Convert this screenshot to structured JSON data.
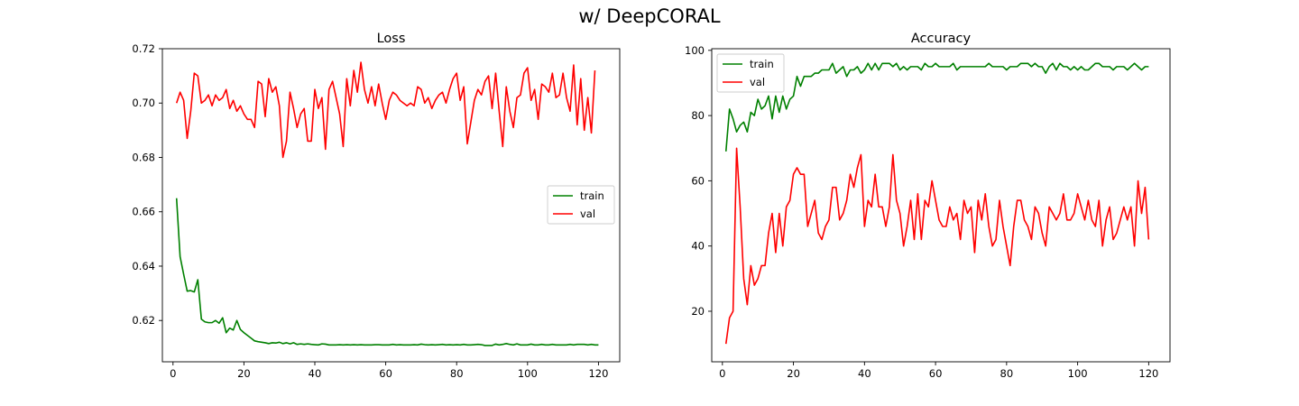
{
  "figure": {
    "title": "w/ DeepCORAL"
  },
  "chart_data": [
    {
      "type": "line",
      "title": "Loss",
      "xlabel": "",
      "ylabel": "",
      "xlim": [
        -3,
        126
      ],
      "ylim": [
        0.6048,
        0.72
      ],
      "xticks": [
        0,
        20,
        40,
        60,
        80,
        100,
        120
      ],
      "yticks": [
        0.62,
        0.64,
        0.66,
        0.68,
        0.7,
        0.72
      ],
      "ytick_labels": [
        "0.62",
        "0.64",
        "0.66",
        "0.68",
        "0.70",
        "0.72"
      ],
      "legend": {
        "position": "center-right",
        "entries": [
          "train",
          "val"
        ]
      },
      "grid": false,
      "x_start": 1,
      "series": [
        {
          "name": "train",
          "color": "#008000",
          "values": [
            0.665,
            0.6435,
            0.637,
            0.6308,
            0.631,
            0.6305,
            0.635,
            0.6205,
            0.6195,
            0.6192,
            0.6192,
            0.62,
            0.619,
            0.621,
            0.6155,
            0.6172,
            0.6165,
            0.62,
            0.6167,
            0.6155,
            0.6145,
            0.6135,
            0.6125,
            0.6122,
            0.612,
            0.6118,
            0.6115,
            0.6118,
            0.6117,
            0.612,
            0.6115,
            0.6118,
            0.6114,
            0.6118,
            0.6112,
            0.6114,
            0.6112,
            0.6114,
            0.6112,
            0.6111,
            0.611,
            0.6114,
            0.6113,
            0.611,
            0.611,
            0.611,
            0.6111,
            0.611,
            0.6111,
            0.611,
            0.6111,
            0.611,
            0.6111,
            0.611,
            0.611,
            0.611,
            0.6111,
            0.6111,
            0.611,
            0.611,
            0.611,
            0.6112,
            0.611,
            0.6111,
            0.611,
            0.611,
            0.611,
            0.6111,
            0.611,
            0.6113,
            0.6111,
            0.611,
            0.6111,
            0.611,
            0.6111,
            0.6112,
            0.611,
            0.6111,
            0.611,
            0.6111,
            0.611,
            0.6112,
            0.611,
            0.611,
            0.6111,
            0.6112,
            0.6111,
            0.6108,
            0.6108,
            0.6108,
            0.6113,
            0.611,
            0.6112,
            0.6115,
            0.6112,
            0.611,
            0.6114,
            0.611,
            0.611,
            0.611,
            0.6113,
            0.611,
            0.611,
            0.6112,
            0.611,
            0.611,
            0.6112,
            0.611,
            0.611,
            0.611,
            0.611,
            0.6112,
            0.611,
            0.6112,
            0.6112,
            0.6112,
            0.611,
            0.6112,
            0.611,
            0.611
          ]
        },
        {
          "name": "val",
          "color": "#ff0000",
          "values": [
            0.7,
            0.704,
            0.701,
            0.687,
            0.697,
            0.711,
            0.71,
            0.7,
            0.701,
            0.703,
            0.699,
            0.703,
            0.701,
            0.702,
            0.705,
            0.698,
            0.701,
            0.697,
            0.699,
            0.696,
            0.694,
            0.694,
            0.691,
            0.708,
            0.707,
            0.695,
            0.709,
            0.704,
            0.706,
            0.699,
            0.68,
            0.686,
            0.704,
            0.698,
            0.691,
            0.696,
            0.698,
            0.686,
            0.686,
            0.705,
            0.698,
            0.702,
            0.683,
            0.705,
            0.708,
            0.702,
            0.696,
            0.684,
            0.709,
            0.699,
            0.712,
            0.704,
            0.715,
            0.705,
            0.7,
            0.706,
            0.699,
            0.707,
            0.7,
            0.694,
            0.701,
            0.704,
            0.703,
            0.701,
            0.7,
            0.699,
            0.7,
            0.699,
            0.706,
            0.705,
            0.7,
            0.702,
            0.698,
            0.701,
            0.703,
            0.704,
            0.7,
            0.705,
            0.709,
            0.711,
            0.701,
            0.706,
            0.685,
            0.693,
            0.701,
            0.705,
            0.703,
            0.708,
            0.71,
            0.698,
            0.711,
            0.697,
            0.684,
            0.706,
            0.697,
            0.691,
            0.702,
            0.703,
            0.711,
            0.713,
            0.701,
            0.705,
            0.694,
            0.707,
            0.706,
            0.704,
            0.711,
            0.702,
            0.703,
            0.711,
            0.702,
            0.697,
            0.714,
            0.692,
            0.709,
            0.69,
            0.702,
            0.689,
            0.712
          ]
        }
      ]
    },
    {
      "type": "line",
      "title": "Accuracy",
      "xlabel": "",
      "ylabel": "",
      "xlim": [
        -3,
        126
      ],
      "ylim": [
        4.5,
        100.5
      ],
      "xticks": [
        0,
        20,
        40,
        60,
        80,
        100,
        120
      ],
      "yticks": [
        20,
        40,
        60,
        80,
        100
      ],
      "ytick_labels": [
        "20",
        "40",
        "60",
        "80",
        "100"
      ],
      "legend": {
        "position": "top-left",
        "entries": [
          "train",
          "val"
        ]
      },
      "grid": false,
      "x_start": 1,
      "series": [
        {
          "name": "train",
          "color": "#008000",
          "values": [
            69,
            82,
            79,
            75,
            77,
            78,
            75,
            81,
            80,
            85,
            82,
            83,
            86,
            79,
            86,
            81,
            86,
            82,
            85,
            86,
            92,
            89,
            92,
            92,
            92,
            93,
            93,
            94,
            94,
            94,
            96,
            93,
            94,
            95,
            92,
            94,
            94,
            95,
            93,
            94,
            96,
            94,
            96,
            94,
            96,
            96,
            96,
            95,
            96,
            94,
            95,
            94,
            95,
            95,
            95,
            94,
            96,
            95,
            95,
            96,
            95,
            95,
            95,
            95,
            96,
            94,
            95,
            95,
            95,
            95,
            95,
            95,
            95,
            95,
            96,
            95,
            95,
            95,
            95,
            94,
            95,
            95,
            95,
            96,
            96,
            96,
            95,
            96,
            95,
            95,
            93,
            95,
            96,
            94,
            96,
            95,
            95,
            94,
            95,
            94,
            95,
            94,
            94,
            95,
            96,
            96,
            95,
            95,
            95,
            94,
            95,
            95,
            95,
            94,
            95,
            96,
            95,
            94,
            95,
            95
          ]
        },
        {
          "name": "val",
          "color": "#ff0000",
          "values": [
            10,
            18,
            20,
            70,
            52,
            30,
            22,
            34,
            28,
            30,
            34,
            34,
            44,
            50,
            38,
            50,
            40,
            52,
            54,
            62,
            64,
            62,
            62,
            46,
            50,
            54,
            44,
            42,
            46,
            48,
            58,
            58,
            48,
            50,
            54,
            62,
            58,
            64,
            68,
            46,
            54,
            52,
            62,
            52,
            52,
            46,
            52,
            68,
            54,
            50,
            40,
            46,
            54,
            42,
            56,
            42,
            54,
            52,
            60,
            54,
            48,
            46,
            46,
            52,
            48,
            50,
            42,
            54,
            50,
            52,
            38,
            54,
            48,
            56,
            46,
            40,
            42,
            54,
            46,
            40,
            34,
            46,
            54,
            54,
            48,
            46,
            42,
            52,
            50,
            44,
            40,
            52,
            50,
            48,
            50,
            56,
            48,
            48,
            50,
            56,
            52,
            48,
            54,
            48,
            46,
            54,
            40,
            48,
            52,
            42,
            44,
            48,
            52,
            48,
            52,
            40,
            60,
            50,
            58,
            42
          ]
        }
      ]
    }
  ]
}
